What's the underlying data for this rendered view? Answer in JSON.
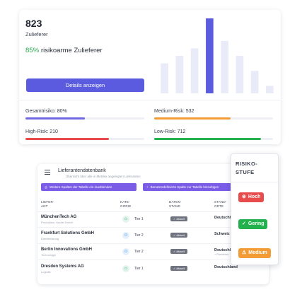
{
  "summary": {
    "count": "823",
    "unit": "Zulieferer",
    "low_risk_percent": "85%",
    "low_risk_label": "risikoarme Zulieferer",
    "details_button": "Details anzeigen",
    "chart_data": {
      "type": "bar",
      "values": [
        4,
        5,
        6,
        10,
        7,
        5,
        3,
        1
      ],
      "colors": [
        "#e9ebf8",
        "#e9ebf8",
        "#e9ebf8",
        "#5b5be0",
        "#e9ebf8",
        "#e9ebf8",
        "#e9ebf8",
        "#e9ebf8"
      ]
    },
    "metrics": [
      {
        "label": "Gesamtrisiko: 80%",
        "fill": 0.5,
        "color": "#7067e2"
      },
      {
        "label": "Medium-Risk: 532",
        "fill": 0.64,
        "color": "#f39b34"
      },
      {
        "label": "High-Risk: 210",
        "fill": 0.7,
        "color": "#e84b4b"
      },
      {
        "label": "Low-Risk: 712",
        "fill": 0.9,
        "color": "#22b14c"
      }
    ]
  },
  "table": {
    "title": "Lieferantendatenbank",
    "subtitle": "Übersicht über alle in Metrike angelegten Lieferanten",
    "buttons": [
      {
        "glyph": "◎",
        "label": "Weitere Spalten der Tabelle ein-/ausblenden"
      },
      {
        "glyph": "+",
        "label": "Benutzerdefinierte Spalte zur Tabelle hinzufügen"
      }
    ],
    "columns": [
      [
        "LIEFER-",
        "ANT"
      ],
      [
        "KATE-",
        "GORIE"
      ],
      [
        "DATEN-",
        "STAND"
      ],
      [
        "STAND-",
        "ORTE"
      ]
    ],
    "rows": [
      {
        "name": "MünchenTech AG",
        "sector": "Produktion, Keufel GmbH",
        "tier_icon": "sun-icon",
        "tier": "Tier 1",
        "status": "✓ Aktuell",
        "location": "Deutschland",
        "loc_sub": ""
      },
      {
        "name": "Frankfurt Solutions GmbH",
        "sector": "Dienstleistung",
        "tier_icon": "people-icon",
        "tier": "Tier 2",
        "status": "✓ Aktuell",
        "location": "Schweiz",
        "loc_sub": ""
      },
      {
        "name": "Berlin Innovations GmbH",
        "sector": "Technologie",
        "tier_icon": "people-icon",
        "tier": "Tier 2",
        "status": "✓ Aktuell",
        "location": "Deutschland",
        "loc_sub": "+ Rumänien"
      },
      {
        "name": "Dresden Systems AG",
        "sector": "Logistik",
        "tier_icon": "sun-icon",
        "tier": "Tier 1",
        "status": "✓ Aktuell",
        "location": "Deutschland",
        "loc_sub": ""
      }
    ]
  },
  "risk": {
    "title": "RISIKO-STUFE",
    "levels": [
      {
        "glyph": "⊗",
        "label": "Hoch",
        "color": "#e84b4b"
      },
      {
        "glyph": "✓",
        "label": "Gering",
        "color": "#22b14c"
      },
      {
        "glyph": "⚠",
        "label": "Medium",
        "color": "#f39b34"
      }
    ]
  }
}
